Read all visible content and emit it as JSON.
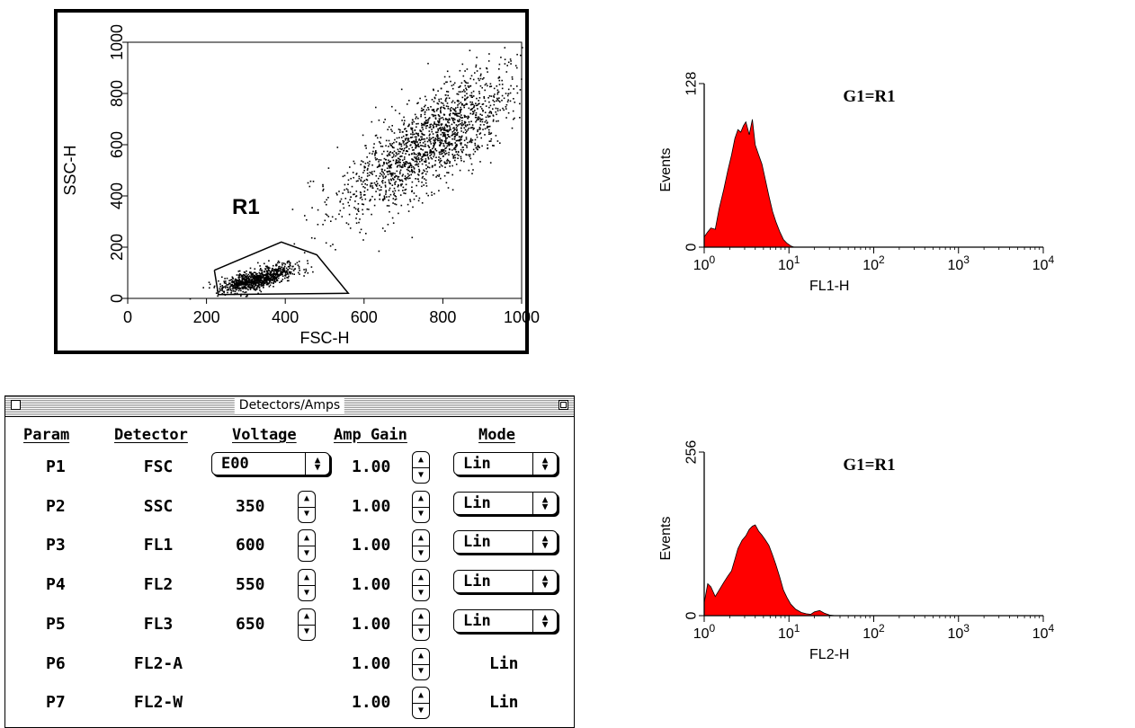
{
  "chart_data": [
    {
      "type": "scatter",
      "xlabel": "FSC-H",
      "ylabel": "SSC-H",
      "xlim": [
        0,
        1000
      ],
      "ylim": [
        0,
        1000
      ],
      "xticks": [
        0,
        200,
        400,
        600,
        800,
        1000
      ],
      "yticks": [
        0,
        200,
        400,
        600,
        800,
        1000
      ],
      "gate": {
        "label": "R1",
        "polygon": [
          [
            220,
            110
          ],
          [
            390,
            220
          ],
          [
            480,
            170
          ],
          [
            560,
            20
          ],
          [
            230,
            15
          ],
          [
            220,
            110
          ]
        ]
      },
      "clusters": [
        {
          "center": [
            330,
            80
          ],
          "spread": [
            55,
            25
          ],
          "count": 900
        },
        {
          "center": [
            770,
            620
          ],
          "spread": [
            110,
            150
          ],
          "count": 1700
        }
      ]
    },
    {
      "type": "area",
      "title": "G1=R1",
      "xlabel": "FL1-H",
      "ylabel": "Events",
      "x_scale": "log",
      "xlim": [
        1,
        10000
      ],
      "ylim": [
        0,
        128
      ],
      "yticks": [
        0,
        128
      ],
      "xtick_base": "10",
      "xtick_exponents": [
        "0",
        "1",
        "2",
        "3",
        "4"
      ],
      "color": "#ff0000",
      "x": [
        1.0,
        1.1,
        1.2,
        1.35,
        1.5,
        1.7,
        1.9,
        2.1,
        2.3,
        2.5,
        2.7,
        2.9,
        3.1,
        3.4,
        3.7,
        4.0,
        4.4,
        4.8,
        5.3,
        5.8,
        6.4,
        7.0,
        7.8,
        8.6,
        9.5,
        10.5,
        11.5,
        12.5
      ],
      "y": [
        8,
        12,
        15,
        14,
        30,
        45,
        60,
        72,
        85,
        92,
        90,
        95,
        98,
        88,
        100,
        80,
        72,
        65,
        52,
        40,
        28,
        20,
        12,
        6,
        3,
        1,
        0,
        0
      ]
    },
    {
      "type": "area",
      "title": "G1=R1",
      "xlabel": "FL2-H",
      "ylabel": "Events",
      "x_scale": "log",
      "xlim": [
        1,
        10000
      ],
      "ylim": [
        0,
        256
      ],
      "yticks": [
        0,
        256
      ],
      "xtick_base": "10",
      "xtick_exponents": [
        "0",
        "1",
        "2",
        "3",
        "4"
      ],
      "color": "#ff0000",
      "x": [
        1.0,
        1.1,
        1.2,
        1.35,
        1.5,
        1.7,
        1.9,
        2.1,
        2.3,
        2.5,
        2.8,
        3.1,
        3.4,
        3.7,
        4.0,
        4.4,
        4.8,
        5.3,
        5.8,
        6.4,
        7.0,
        7.8,
        8.6,
        9.5,
        10.5,
        12,
        14,
        16,
        18,
        20,
        23,
        26,
        30,
        35
      ],
      "y": [
        20,
        50,
        45,
        30,
        40,
        52,
        62,
        70,
        88,
        105,
        118,
        125,
        135,
        140,
        142,
        132,
        126,
        118,
        110,
        95,
        80,
        60,
        40,
        28,
        18,
        10,
        5,
        3,
        2,
        6,
        8,
        4,
        1,
        0
      ]
    }
  ],
  "detectors_window": {
    "title": "Detectors/Amps",
    "headers": [
      "Param",
      "Detector",
      "Voltage",
      "Amp Gain",
      "Mode"
    ],
    "rows": [
      {
        "param": "P1",
        "detector": "FSC",
        "voltage": "E00",
        "gain": "1.00",
        "mode": "Lin"
      },
      {
        "param": "P2",
        "detector": "SSC",
        "voltage": "350",
        "gain": "1.00",
        "mode": "Lin"
      },
      {
        "param": "P3",
        "detector": "FL1",
        "voltage": "600",
        "gain": "1.00",
        "mode": "Lin"
      },
      {
        "param": "P4",
        "detector": "FL2",
        "voltage": "550",
        "gain": "1.00",
        "mode": "Lin"
      },
      {
        "param": "P5",
        "detector": "FL3",
        "voltage": "650",
        "gain": "1.00",
        "mode": "Lin"
      },
      {
        "param": "P6",
        "detector": "FL2-A",
        "voltage": "",
        "gain": "1.00",
        "mode": "Lin"
      },
      {
        "param": "P7",
        "detector": "FL2-W",
        "voltage": "",
        "gain": "1.00",
        "mode": "Lin"
      }
    ]
  }
}
